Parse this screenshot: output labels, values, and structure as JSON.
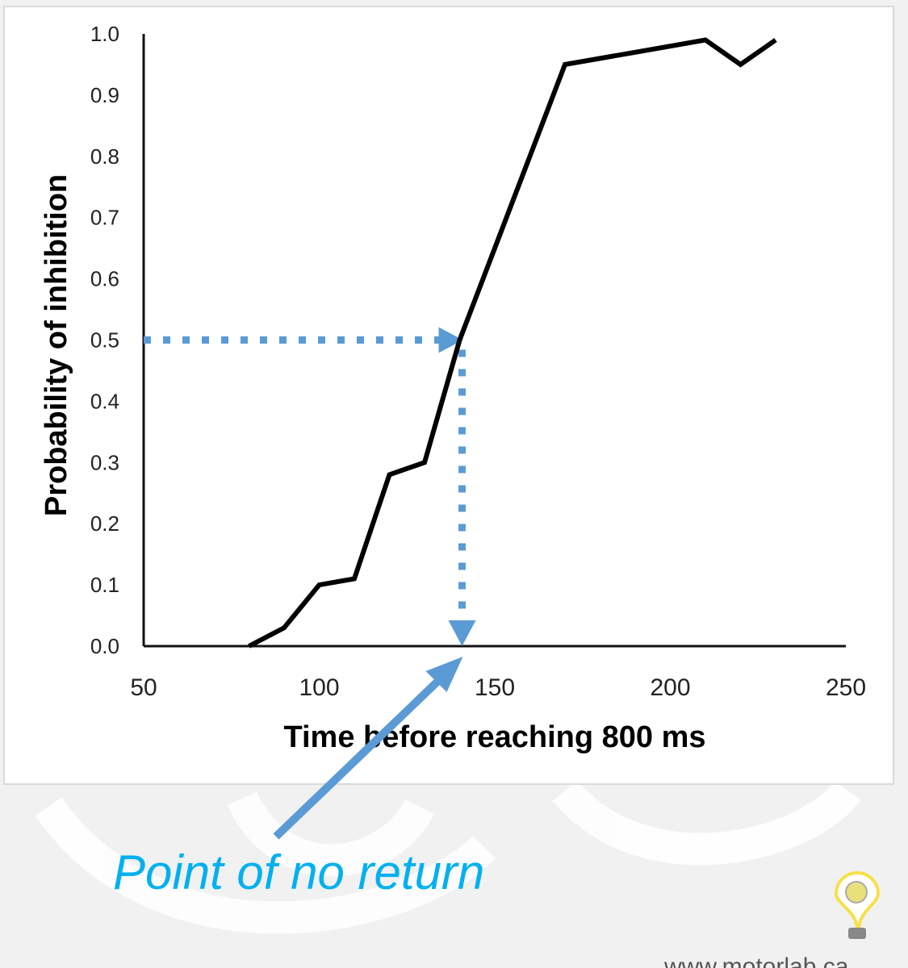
{
  "chart_data": {
    "type": "line",
    "title": "",
    "xlabel": "Time before reaching 800 ms",
    "ylabel": "Probability of inhibition",
    "xlim": [
      50,
      250
    ],
    "ylim": [
      0,
      1.0
    ],
    "x_ticks": [
      "50",
      "100",
      "150",
      "200",
      "250"
    ],
    "y_ticks": [
      "0.0",
      "0.1",
      "0.2",
      "0.3",
      "0.4",
      "0.5",
      "0.6",
      "0.7",
      "0.8",
      "0.9",
      "1.0"
    ],
    "grid": false,
    "legend": "none",
    "series": [
      {
        "x": [
          80,
          90,
          100,
          110,
          120,
          130,
          140,
          150,
          160,
          170,
          180,
          190,
          200,
          210,
          220,
          230
        ],
        "y": [
          0.0,
          0.03,
          0.1,
          0.11,
          0.28,
          0.3,
          0.5,
          0.65,
          0.8,
          0.95,
          0.96,
          0.97,
          0.98,
          0.99,
          0.95,
          0.99
        ],
        "color": "#000000"
      }
    ],
    "reference_lines": {
      "y_value": 0.5,
      "x_value": 140,
      "color": "#5b9bd5",
      "style": "dotted with arrowheads"
    },
    "annotation": {
      "text": "Point of no return",
      "points_to_x": 140,
      "text_color": "#00b0f0",
      "arrow_color": "#5b9bd5"
    }
  },
  "footer": {
    "url": "www.motorlab.ca",
    "logo": "lightbulb-brain-logo"
  }
}
